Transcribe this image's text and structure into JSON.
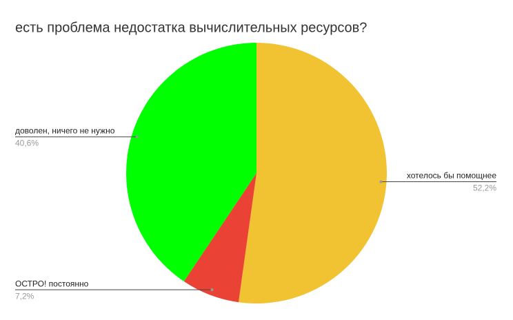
{
  "chart_data": {
    "type": "pie",
    "title": "есть проблема недостатка вычислительных ресурсов?",
    "categories": [
      "хотелось бы помощнее",
      "ОСТРО! постоянно",
      "доволен, ничего не нужно"
    ],
    "values": [
      52.2,
      7.2,
      40.6
    ],
    "value_labels": [
      "52,2%",
      "7,2%",
      "40,6%"
    ],
    "colors": [
      "#f1c232",
      "#ea4335",
      "#00ff00"
    ]
  }
}
